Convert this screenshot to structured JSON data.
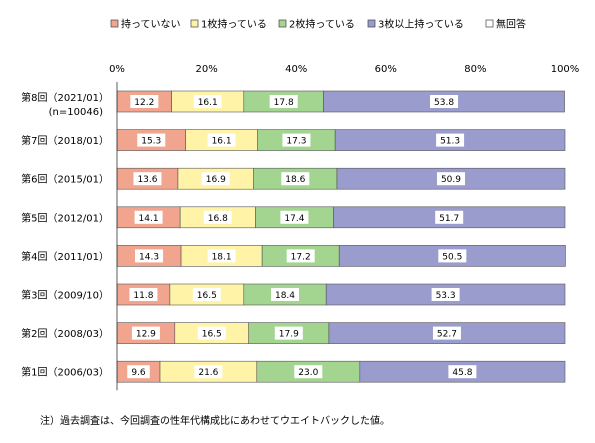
{
  "chart_data": {
    "type": "bar",
    "orientation": "horizontal",
    "stacked": true,
    "percent": true,
    "xlim": [
      0,
      100
    ],
    "x_ticks": [
      "0%",
      "20%",
      "40%",
      "60%",
      "80%",
      "100%"
    ],
    "legend_position": "top",
    "categories": [
      [
        "第8回（2021/01）",
        "(n=10046)"
      ],
      [
        "第7回（2018/01）"
      ],
      [
        "第6回（2015/01）"
      ],
      [
        "第5回（2012/01）"
      ],
      [
        "第4回（2011/01）"
      ],
      [
        "第3回（2009/10）"
      ],
      [
        "第2回（2008/03）"
      ],
      [
        "第1回（2006/03）"
      ]
    ],
    "series": [
      {
        "name": "持っていない",
        "color": "#f2a58e",
        "values": [
          12.2,
          15.3,
          13.6,
          14.1,
          14.3,
          11.8,
          12.9,
          9.6
        ]
      },
      {
        "name": "1枚持っている",
        "color": "#fef3a6",
        "values": [
          16.1,
          16.1,
          16.9,
          16.8,
          18.1,
          16.5,
          16.5,
          21.6
        ]
      },
      {
        "name": "2枚持っている",
        "color": "#a3d590",
        "values": [
          17.8,
          17.3,
          18.6,
          17.4,
          17.2,
          18.4,
          17.9,
          23.0
        ]
      },
      {
        "name": "3枚以上持っている",
        "color": "#9a9cce",
        "values": [
          53.8,
          51.3,
          50.9,
          51.7,
          50.5,
          53.3,
          52.7,
          45.8
        ]
      },
      {
        "name": "無回答",
        "color": "#ffffff",
        "values": [
          0,
          0,
          0,
          0,
          0,
          0,
          0,
          0
        ]
      }
    ]
  },
  "note": "注）過去調査は、今回調査の性年代構成比にあわせてウエイトバックした値。"
}
